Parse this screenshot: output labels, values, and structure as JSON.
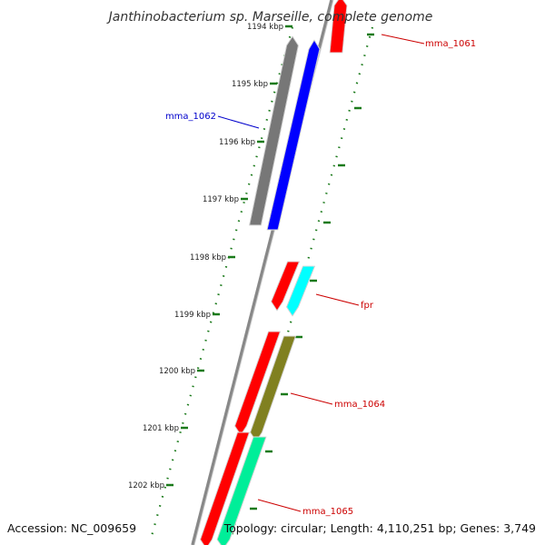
{
  "title": "Janthinobacterium sp. Marseille, complete genome",
  "footer": {
    "accession": "Accession: NC_009659",
    "summary": "Topology: circular; Length: 4,110,251 bp; Genes: 3,749"
  },
  "colors": {
    "backbone": "#888888",
    "tick": "#1a7a1a",
    "label_red": "#cc0000",
    "label_blue": "#0000cc"
  },
  "ticks": [
    {
      "label": "1194 kbp"
    },
    {
      "label": "1195 kbp"
    },
    {
      "label": "1196 kbp"
    },
    {
      "label": "1197 kbp"
    },
    {
      "label": "1198 kbp"
    },
    {
      "label": "1199 kbp"
    },
    {
      "label": "1200 kbp"
    },
    {
      "label": "1201 kbp"
    },
    {
      "label": "1202 kbp"
    }
  ],
  "genes": [
    {
      "name": "mma_1061",
      "color": "#ff0000",
      "strand": "reverse",
      "label_color": "#cc0000"
    },
    {
      "name": "mma_1062",
      "color": "#0000ff",
      "strand": "reverse",
      "label_color": "#0000cc"
    },
    {
      "name": "",
      "color": "#777777",
      "strand": "reverse"
    },
    {
      "name": "",
      "color": "#ff0000",
      "strand": "forward"
    },
    {
      "name": "fpr",
      "color": "#00ffff",
      "strand": "forward",
      "label_color": "#cc0000"
    },
    {
      "name": "",
      "color": "#ff0000",
      "strand": "forward"
    },
    {
      "name": "mma_1064",
      "color": "#808020",
      "strand": "forward",
      "label_color": "#cc0000"
    },
    {
      "name": "",
      "color": "#ff0000",
      "strand": "forward"
    },
    {
      "name": "mma_1065",
      "color": "#00ee99",
      "strand": "forward",
      "label_color": "#cc0000"
    }
  ]
}
